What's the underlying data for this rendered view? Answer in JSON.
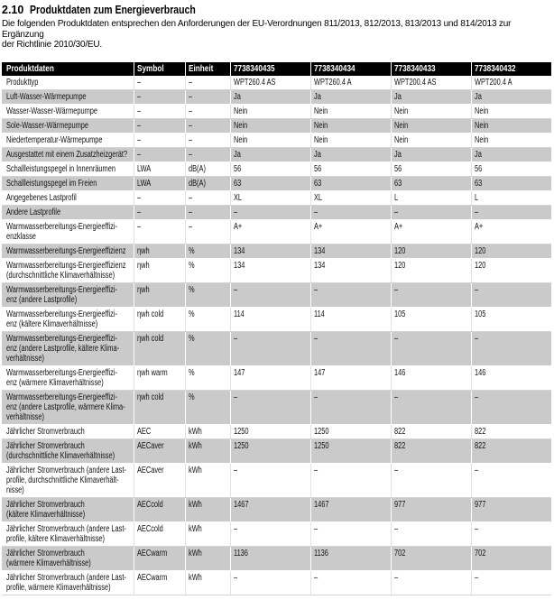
{
  "page": {
    "section_number": "2.10",
    "section_title": "Produktdaten zum Energieverbrauch",
    "intro": "Die folgenden Produktdaten entsprechen den Anforderungen der EU-Verordnungen 811/2013, 812/2013, 813/2013 und 814/2013 zur Ergänzung\nder Richtlinie 2010/30/EU."
  },
  "colors": {
    "table_header_bg": "#000000",
    "table_header_text": "#ffffff",
    "row_shaded_bg": "#cacaca",
    "row_plain_bg": "#ffffff"
  },
  "table": {
    "headers": [
      "Produktdaten",
      "Symbol",
      "Einheit",
      "7738340435",
      "7738340434",
      "7738340433",
      "7738340432"
    ],
    "rows": [
      {
        "label": "Produkttyp",
        "symbol": "–",
        "unit": "–",
        "values": [
          "WPT260.4 AS",
          "WPT260.4 A",
          "WPT200.4 AS",
          "WPT200.4 A"
        ]
      },
      {
        "label": "Luft-Wasser-Wärmepumpe",
        "symbol": "–",
        "unit": "–",
        "values": [
          "Ja",
          "Ja",
          "Ja",
          "Ja"
        ]
      },
      {
        "label": "Wasser-Wasser-Wärmepumpe",
        "symbol": "–",
        "unit": "–",
        "values": [
          "Nein",
          "Nein",
          "Nein",
          "Nein"
        ]
      },
      {
        "label": "Sole-Wasser-Wärmepumpe",
        "symbol": "–",
        "unit": "–",
        "values": [
          "Nein",
          "Nein",
          "Nein",
          "Nein"
        ]
      },
      {
        "label": "Niedertemperatur-Wärmepumpe",
        "symbol": "–",
        "unit": "–",
        "values": [
          "Nein",
          "Nein",
          "Nein",
          "Nein"
        ]
      },
      {
        "label": "Ausgestattet mit einem Zusatzheizgerät?",
        "symbol": "–",
        "unit": "–",
        "values": [
          "Ja",
          "Ja",
          "Ja",
          "Ja"
        ]
      },
      {
        "label": "Schallleistungspegel in Innenräumen",
        "symbol": "LWA",
        "unit": "dB(A)",
        "values": [
          "56",
          "56",
          "56",
          "56"
        ]
      },
      {
        "label": "Schallleistungspegel im Freien",
        "symbol": "LWA",
        "unit": "dB(A)",
        "values": [
          "63",
          "63",
          "63",
          "63"
        ]
      },
      {
        "label": "Angegebenes Lastprofil",
        "symbol": "–",
        "unit": "–",
        "values": [
          "XL",
          "XL",
          "L",
          "L"
        ]
      },
      {
        "label": "Andere Lastprofile",
        "symbol": "–",
        "unit": "–",
        "values": [
          "–",
          "–",
          "–",
          "–"
        ]
      },
      {
        "label": "Warmwasserbereitungs-Energieeffizi-\nenzklasse",
        "symbol": "–",
        "unit": "–",
        "values": [
          "A+",
          "A+",
          "A+",
          "A+"
        ]
      },
      {
        "label": "Warmwasserbereitungs-Energieeffizienz",
        "symbol": "ηwh",
        "unit": "%",
        "values": [
          "134",
          "134",
          "120",
          "120"
        ]
      },
      {
        "label": "Warmwasserbereitungs-Energieeffizienz\n(durchschnittliche Klimaverhältnisse)",
        "symbol": "ηwh",
        "unit": "%",
        "values": [
          "134",
          "134",
          "120",
          "120"
        ]
      },
      {
        "label": "Warmwasserbereitungs-Energieeffizi-\nenz (andere Lastprofile)",
        "symbol": "ηwh",
        "unit": "%",
        "values": [
          "–",
          "–",
          "–",
          "–"
        ]
      },
      {
        "label": "Warmwasserbereitungs-Energieeffizi-\nenz (kältere Klimaverhältnisse)",
        "symbol": "ηwh cold",
        "unit": "%",
        "values": [
          "114",
          "114",
          "105",
          "105"
        ]
      },
      {
        "label": "Warmwasserbereitungs-Energieeffizi-\nenz (andere Lastprofile, kältere Klima-\nverhältnisse)",
        "symbol": "ηwh cold",
        "unit": "%",
        "values": [
          "–",
          "–",
          "–",
          "–"
        ]
      },
      {
        "label": "Warmwasserbereitungs-Energieeffizi-\nenz (wärmere Klimaverhältnisse)",
        "symbol": "ηwh warm",
        "unit": "%",
        "values": [
          "147",
          "147",
          "146",
          "146"
        ]
      },
      {
        "label": "Warmwasserbereitungs-Energieeffizi-\nenz (andere Lastprofile, wärmere Klima-\nverhältnisse)",
        "symbol": "ηwh cold",
        "unit": "%",
        "values": [
          "–",
          "–",
          "–",
          "–"
        ]
      },
      {
        "label": "Jährlicher Stromverbrauch",
        "symbol": "AEC",
        "unit": "kWh",
        "values": [
          "1250",
          "1250",
          "822",
          "822"
        ]
      },
      {
        "label": "Jährlicher Stromverbrauch\n(durchschnittliche Klimaverhältnisse)",
        "symbol": "AECaver",
        "unit": "kWh",
        "values": [
          "1250",
          "1250",
          "822",
          "822"
        ]
      },
      {
        "label": "Jährlicher Stromverbrauch (andere Last-\nprofile, durchschnittliche Klimaverhält-\nnisse)",
        "symbol": "AECaver",
        "unit": "kWh",
        "values": [
          "–",
          "–",
          "–",
          "–"
        ]
      },
      {
        "label": "Jährlicher Stromverbrauch\n(kältere Klimaverhältnisse)",
        "symbol": "AECcold",
        "unit": "kWh",
        "values": [
          "1467",
          "1467",
          "977",
          "977"
        ]
      },
      {
        "label": "Jährlicher Stromverbrauch (andere Last-\nprofile, kältere Klimaverhältnisse)",
        "symbol": "AECcold",
        "unit": "kWh",
        "values": [
          "–",
          "–",
          "–",
          "–"
        ]
      },
      {
        "label": "Jährlicher Stromverbrauch\n(wärmere Klimaverhältnisse)",
        "symbol": "AECwarm",
        "unit": "kWh",
        "values": [
          "1136",
          "1136",
          "702",
          "702"
        ]
      },
      {
        "label": "Jährlicher Stromverbrauch (andere Last-\nprofile, wärmere Klimaverhältnisse)",
        "symbol": "AECwarm",
        "unit": "kWh",
        "values": [
          "–",
          "–",
          "–",
          "–"
        ]
      }
    ]
  }
}
